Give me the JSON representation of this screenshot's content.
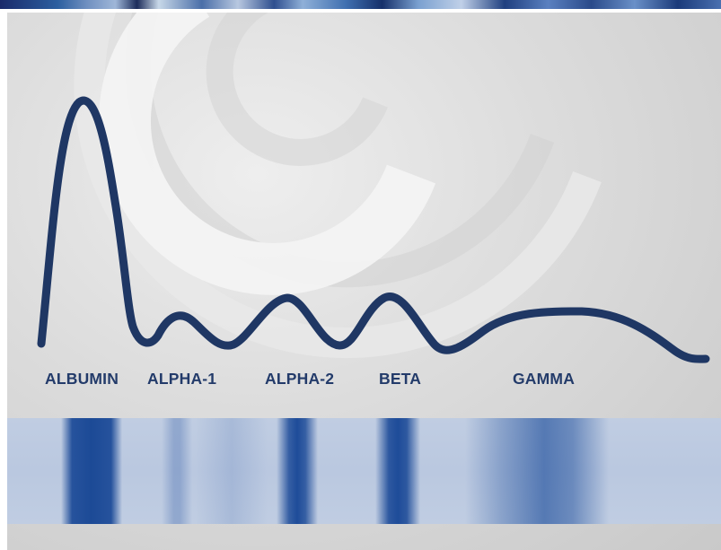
{
  "fractions": {
    "albumin": "ALBUMIN",
    "alpha1": "ALPHA-1",
    "alpha2": "ALPHA-2",
    "beta": "BETA",
    "gamma": "GAMMA"
  },
  "colors": {
    "curve": "#1f3764",
    "label": "#233b6a",
    "band_dark": "#1e4c99",
    "gel_base": "#bccae0",
    "arc_light": "#f2f2f2"
  },
  "icons": {
    "decorative_arcs": "concentric-arcs"
  }
}
